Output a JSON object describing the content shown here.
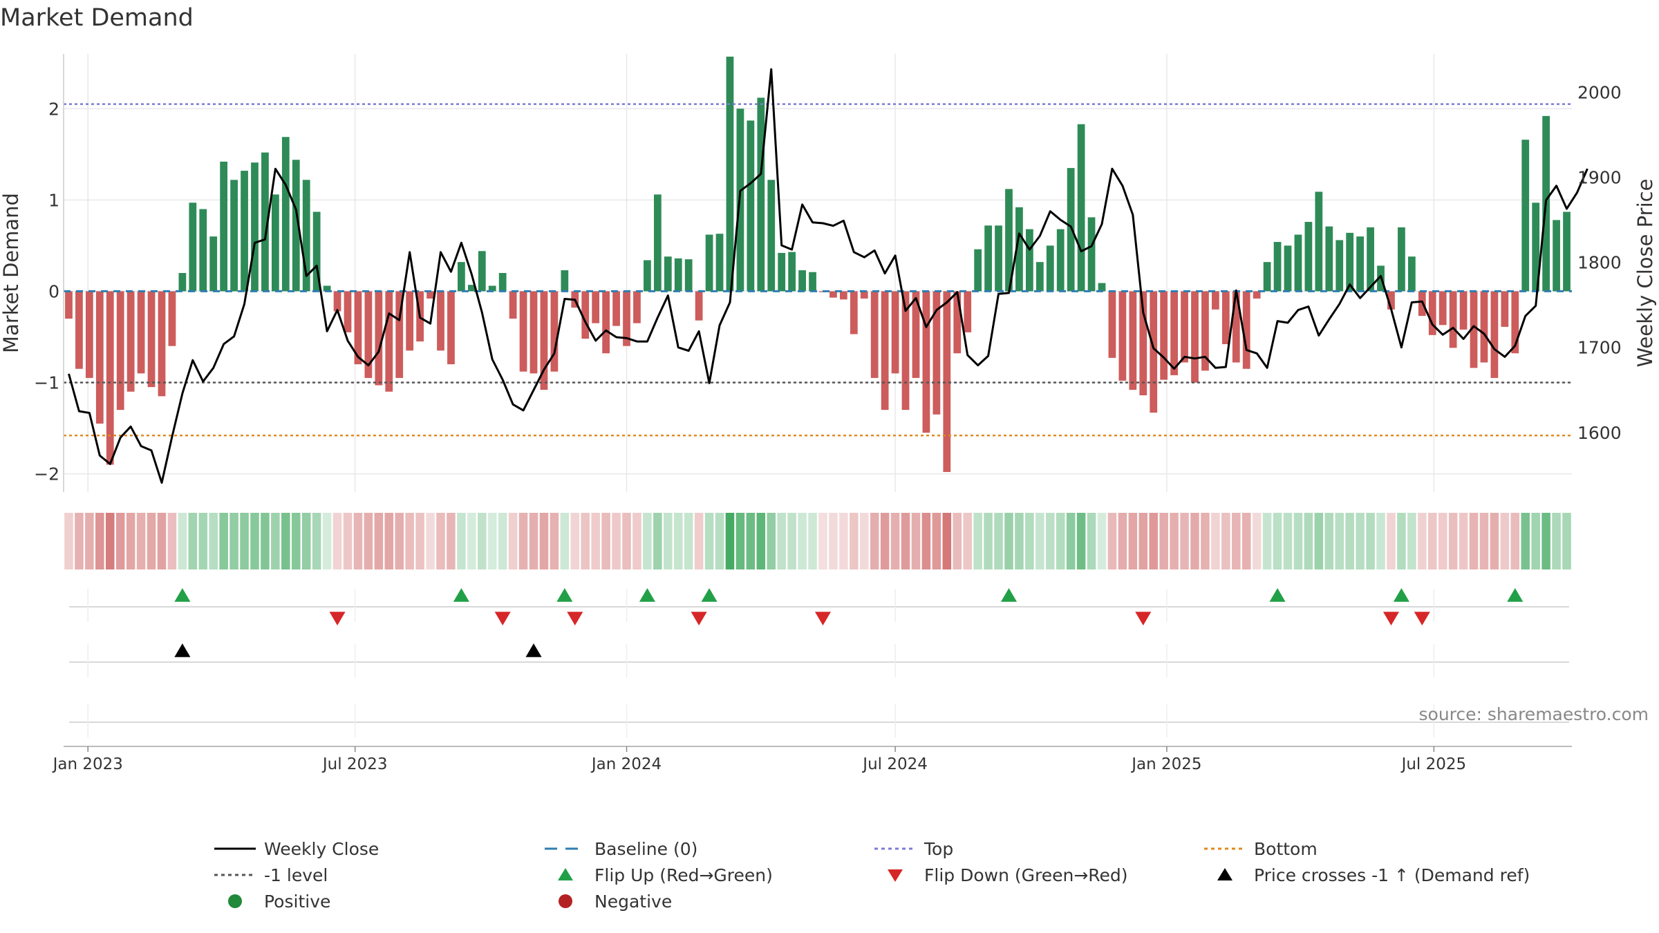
{
  "chart_data": {
    "type": "bar+line",
    "title": "Market Demand",
    "ylabel_left": "Market Demand",
    "ylabel_right": "Weekly Close Price",
    "ylim_left": [
      -2.2,
      2.6
    ],
    "ylim_right": [
      1530,
      2045
    ],
    "yticks_left": [
      -2,
      -1,
      0,
      1,
      2
    ],
    "yticks_left_labels": [
      "−2",
      "−1",
      "0",
      "1",
      "2"
    ],
    "yticks_right": [
      1600,
      1700,
      1800,
      1900,
      2000
    ],
    "x_start": "2022-12-19",
    "week_days": 7,
    "x_ticks": [
      {
        "label": "Jan 2023",
        "date": "2023-01-01"
      },
      {
        "label": "Jul 2023",
        "date": "2023-07-01"
      },
      {
        "label": "Jan 2024",
        "date": "2024-01-01"
      },
      {
        "label": "Jul 2024",
        "date": "2024-07-01"
      },
      {
        "label": "Jan 2025",
        "date": "2025-01-01"
      },
      {
        "label": "Jul 2025",
        "date": "2025-07-01"
      }
    ],
    "reference_lines": [
      {
        "name": "Top",
        "value": 2.05,
        "color": "#7b7bd6",
        "dash": "4,4"
      },
      {
        "name": "-1 level",
        "value": -1.0,
        "color": "#555555",
        "dash": "4,4"
      },
      {
        "name": "Bottom",
        "value": -1.58,
        "color": "#e08a1e",
        "dash": "4,4"
      }
    ],
    "series": [
      {
        "name": "Market Demand",
        "kind": "bar",
        "values": [
          -0.3,
          -0.85,
          -0.95,
          -1.45,
          -1.9,
          -1.3,
          -1.1,
          -0.9,
          -1.05,
          -1.15,
          -0.6,
          0.2,
          0.97,
          0.9,
          0.6,
          1.42,
          1.22,
          1.32,
          1.41,
          1.52,
          1.06,
          1.69,
          1.44,
          1.22,
          0.87,
          0.06,
          -0.22,
          -0.45,
          -0.8,
          -0.95,
          -1.03,
          -1.1,
          -0.95,
          -0.65,
          -0.55,
          -0.08,
          -0.65,
          -0.8,
          0.32,
          0.07,
          0.44,
          0.06,
          0.2,
          -0.3,
          -0.88,
          -0.9,
          -1.08,
          -0.88,
          0.23,
          -0.18,
          -0.52,
          -0.35,
          -0.68,
          -0.38,
          -0.6,
          -0.35,
          0.34,
          1.06,
          0.38,
          0.36,
          0.35,
          -0.32,
          0.62,
          0.63,
          2.57,
          2.0,
          1.87,
          2.12,
          1.22,
          0.42,
          0.43,
          0.23,
          0.21,
          -0.01,
          -0.07,
          -0.09,
          -0.47,
          -0.08,
          -0.95,
          -1.3,
          -0.9,
          -1.3,
          -0.95,
          -1.55,
          -1.35,
          -1.98,
          -0.68,
          -0.45,
          0.46,
          0.72,
          0.72,
          1.12,
          0.92,
          0.68,
          0.32,
          0.5,
          0.68,
          1.35,
          1.83,
          0.81,
          0.09,
          -0.73,
          -0.98,
          -1.08,
          -1.14,
          -1.33,
          -0.97,
          -0.92,
          -0.78,
          -1.0,
          -0.87,
          -0.2,
          -0.58,
          -0.78,
          -0.85,
          -0.08,
          0.32,
          0.54,
          0.5,
          0.62,
          0.76,
          1.09,
          0.71,
          0.56,
          0.64,
          0.6,
          0.7,
          0.28,
          -0.2,
          0.7,
          0.38,
          -0.27,
          -0.48,
          -0.37,
          -0.62,
          -0.42,
          -0.84,
          -0.78,
          -0.95,
          -0.39,
          -0.68,
          1.66,
          0.97,
          1.92,
          0.78,
          0.87
        ]
      },
      {
        "name": "Weekly Close",
        "kind": "line",
        "axis": "right",
        "values": [
          1669,
          1625,
          1623,
          1573,
          1563,
          1594,
          1607,
          1584,
          1579,
          1541,
          1595,
          1646,
          1685,
          1660,
          1676,
          1704,
          1713,
          1751,
          1823,
          1827,
          1910,
          1891,
          1862,
          1784,
          1796,
          1719,
          1744,
          1708,
          1689,
          1679,
          1695,
          1740,
          1732,
          1812,
          1735,
          1728,
          1812,
          1789,
          1823,
          1786,
          1741,
          1686,
          1662,
          1633,
          1626,
          1650,
          1674,
          1693,
          1757,
          1756,
          1730,
          1708,
          1720,
          1712,
          1711,
          1707,
          1707,
          1735,
          1761,
          1700,
          1696,
          1719,
          1658,
          1726,
          1753,
          1884,
          1893,
          1904,
          2027,
          1820,
          1815,
          1868,
          1847,
          1846,
          1843,
          1849,
          1812,
          1806,
          1814,
          1787,
          1808,
          1743,
          1758,
          1724,
          1744,
          1753,
          1765,
          1691,
          1679,
          1690,
          1763,
          1764,
          1834,
          1815,
          1831,
          1860,
          1850,
          1842,
          1813,
          1819,
          1845,
          1910,
          1890,
          1856,
          1741,
          1699,
          1688,
          1675,
          1689,
          1687,
          1689,
          1676,
          1677,
          1767,
          1697,
          1693,
          1676,
          1731,
          1729,
          1744,
          1748,
          1714,
          1733,
          1751,
          1774,
          1758,
          1771,
          1784,
          1745,
          1700,
          1753,
          1754,
          1727,
          1715,
          1723,
          1710,
          1725,
          1716,
          1698,
          1689,
          1702,
          1737,
          1749,
          1873,
          1890,
          1863,
          1882,
          1910
        ]
      }
    ],
    "heat_strip": {
      "description": "Color-coded strip mirroring Market Demand per week (green positive, red negative, intensity by magnitude)"
    },
    "event_rows": [
      {
        "name": "Flip Up (Red→Green)",
        "marker": "triangle-up",
        "color": "#22a047",
        "weeks": [
          11,
          38,
          48,
          56,
          62,
          91,
          117,
          129,
          140
        ]
      },
      {
        "name": "Flip Down (Green→Red)",
        "marker": "triangle-down",
        "color": "#d62728",
        "weeks": [
          26,
          42,
          49,
          61,
          73,
          104,
          128,
          131
        ]
      },
      {
        "name": "Price crosses -1 ↑ (Demand ref)",
        "marker": "triangle-up",
        "color": "#000000",
        "weeks": [
          11,
          45
        ]
      }
    ],
    "legend": {
      "placement": "bottom",
      "entries": [
        {
          "label": "Weekly Close",
          "symbol": "line",
          "color": "#000000"
        },
        {
          "label": "Baseline (0)",
          "symbol": "dash",
          "color": "#2e7eb0"
        },
        {
          "label": "Top",
          "symbol": "dot",
          "color": "#7b7bd6"
        },
        {
          "label": "Bottom",
          "symbol": "dot",
          "color": "#e08a1e"
        },
        {
          "label": "-1 level",
          "symbol": "dot",
          "color": "#555555"
        },
        {
          "label": "Flip Up (Red→Green)",
          "symbol": "tri-up",
          "color": "#22a047"
        },
        {
          "label": "Flip Down (Green→Red)",
          "symbol": "tri-down",
          "color": "#d62728"
        },
        {
          "label": "Price crosses -1 ↑ (Demand ref)",
          "symbol": "tri-up",
          "color": "#000000"
        },
        {
          "label": "Positive",
          "symbol": "circle",
          "color": "#22883a"
        },
        {
          "label": "Negative",
          "symbol": "circle",
          "color": "#b22222"
        }
      ]
    },
    "source_note": "source: sharemaestro.com",
    "colors": {
      "positive_bar": "#2e8b57",
      "negative_bar": "#cd5c5c",
      "baseline": "#2e7eb0",
      "price_line": "#000000",
      "grid": "#e8e8e8"
    }
  }
}
